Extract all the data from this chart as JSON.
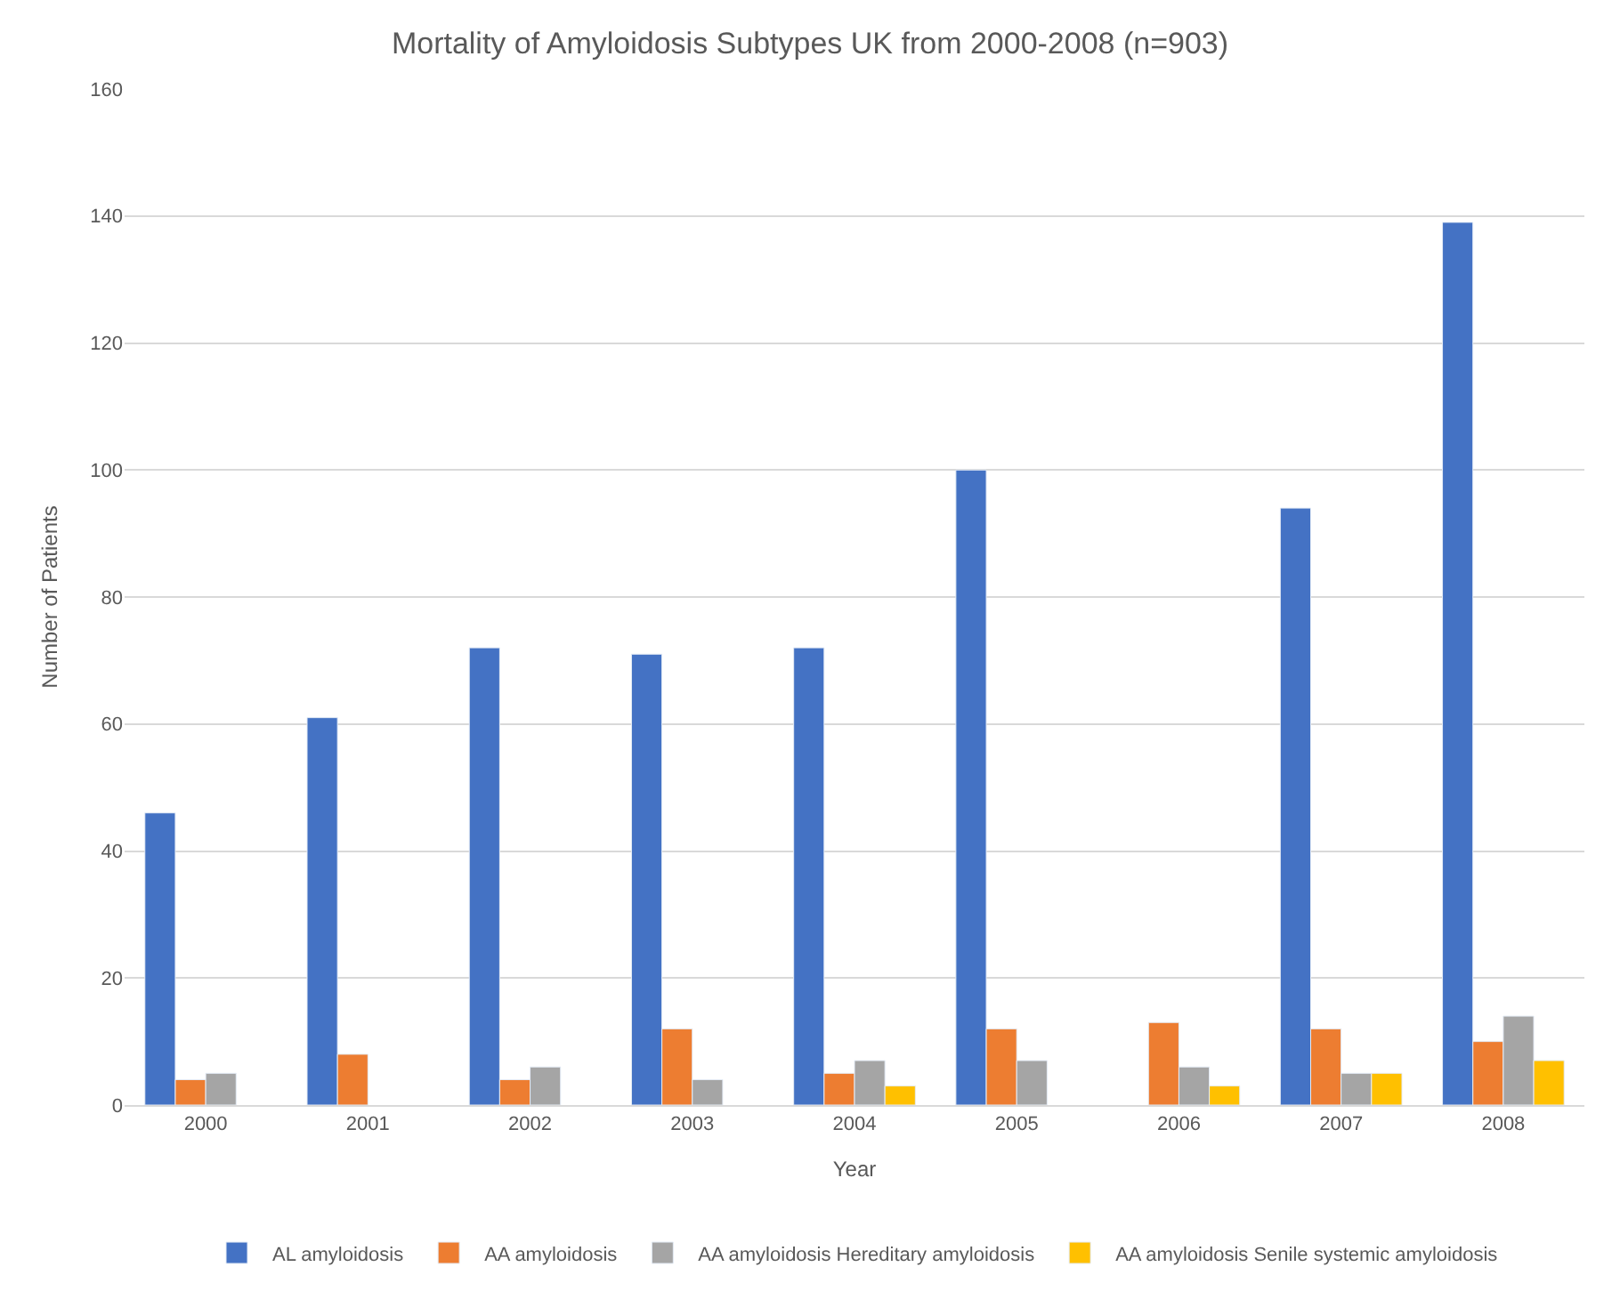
{
  "chart_data": {
    "type": "bar",
    "title": "Mortality of Amyloidosis Subtypes UK from 2000-2008 (n=903)",
    "xlabel": "Year",
    "ylabel": "Number of Patients",
    "categories": [
      "2000",
      "2001",
      "2002",
      "2003",
      "2004",
      "2005",
      "2006",
      "2007",
      "2008"
    ],
    "series": [
      {
        "name": "AL amyloidosis",
        "color": "#4472c4",
        "values": [
          46,
          61,
          72,
          71,
          72,
          100,
          null,
          94,
          139
        ]
      },
      {
        "name": "AA amyloidosis",
        "color": "#ed7d31",
        "values": [
          4,
          8,
          4,
          12,
          5,
          12,
          13,
          12,
          10
        ]
      },
      {
        "name": "AA amyloidosis Hereditary amyloidosis",
        "color": "#a5a5a5",
        "values": [
          5,
          null,
          6,
          4,
          7,
          7,
          6,
          5,
          14
        ]
      },
      {
        "name": "AA amyloidosis Senile systemic amyloidosis",
        "color": "#ffc000",
        "values": [
          null,
          null,
          null,
          null,
          3,
          null,
          3,
          5,
          7
        ]
      }
    ],
    "ylim": [
      0,
      160
    ],
    "yticks": [
      0,
      20,
      40,
      60,
      80,
      100,
      120,
      140,
      160
    ],
    "grid": "y",
    "legend": "bottom"
  }
}
